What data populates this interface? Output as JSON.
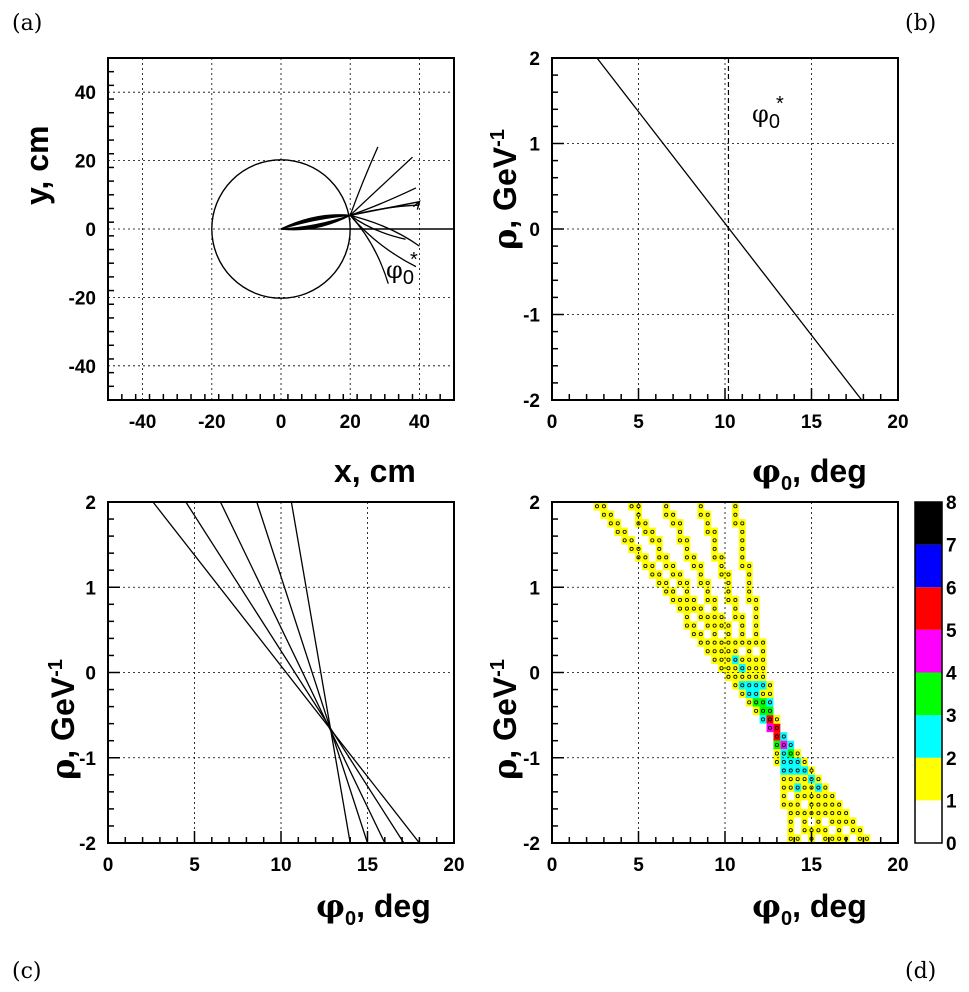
{
  "panels": {
    "a": {
      "letter": "(a)",
      "xtitle": "x, cm",
      "ytitle": "y, cm",
      "annotation_sym": "φ",
      "annotation_sub": "0",
      "annotation_sup": "*"
    },
    "b": {
      "letter": "(b)",
      "xtitle_sym": "φ",
      "xtitle_sub": "0",
      "xtitle_rest": ", deg",
      "ytitle_sym": "ρ",
      "ytitle_rest": ", GeV",
      "ytitle_sup": "-1",
      "annotation_sym": "φ",
      "annotation_sub": "0",
      "annotation_sup": "*"
    },
    "c": {
      "letter": "(c)",
      "xtitle_sym": "φ",
      "xtitle_sub": "0",
      "xtitle_rest": ", deg",
      "ytitle_sym": "ρ",
      "ytitle_rest": ", GeV",
      "ytitle_sup": "-1"
    },
    "d": {
      "letter": "(d)",
      "xtitle_sym": "φ",
      "xtitle_sub": "0",
      "xtitle_rest": ", deg",
      "ytitle_sym": "ρ",
      "ytitle_rest": ", GeV",
      "ytitle_sup": "-1"
    }
  },
  "chart_data": [
    {
      "id": "a",
      "type": "line",
      "xlim": [
        -50,
        50
      ],
      "ylim": [
        -50,
        50
      ],
      "xticks": [
        -40,
        -20,
        0,
        20,
        40
      ],
      "yticks": [
        -40,
        -20,
        0,
        20,
        40
      ],
      "grid": true,
      "circle": {
        "cx": 0,
        "cy": 0,
        "r": 20
      },
      "track_start": [
        0,
        0
      ],
      "crossing_point": [
        20,
        4
      ],
      "track_endpoints": [
        [
          28,
          24
        ],
        [
          38,
          21
        ],
        [
          39,
          12
        ],
        [
          40,
          7
        ],
        [
          36,
          -3
        ],
        [
          40,
          -5
        ],
        [
          39,
          -11
        ],
        [
          31,
          -16
        ]
      ],
      "arrow": {
        "from": [
          20,
          4
        ],
        "to": [
          40,
          8
        ]
      },
      "reference_line": {
        "from": [
          0,
          0
        ],
        "to": [
          50,
          0
        ]
      }
    },
    {
      "id": "b",
      "type": "line",
      "xlim": [
        0,
        20
      ],
      "ylim": [
        -2,
        2
      ],
      "xticks": [
        0,
        5,
        10,
        15,
        20
      ],
      "yticks": [
        -2,
        -1,
        0,
        1,
        2
      ],
      "grid": true,
      "series": [
        {
          "x": [
            2.6,
            17.9
          ],
          "y": [
            2,
            -2
          ]
        }
      ],
      "marker_line_x": 10.2
    },
    {
      "id": "c",
      "type": "line",
      "xlim": [
        0,
        20
      ],
      "ylim": [
        -2,
        2
      ],
      "xticks": [
        0,
        5,
        10,
        15,
        20
      ],
      "yticks": [
        -2,
        -1,
        0,
        1,
        2
      ],
      "grid": true,
      "series": [
        {
          "x": [
            2.6,
            18.0
          ],
          "y": [
            2,
            -2
          ]
        },
        {
          "x": [
            4.5,
            17.1
          ],
          "y": [
            2,
            -2
          ]
        },
        {
          "x": [
            6.5,
            16.0
          ],
          "y": [
            2,
            -2
          ]
        },
        {
          "x": [
            8.6,
            15.0
          ],
          "y": [
            2,
            -2
          ]
        },
        {
          "x": [
            10.6,
            14.0
          ],
          "y": [
            2,
            -2
          ]
        }
      ]
    },
    {
      "id": "d",
      "type": "heatmap",
      "xlim": [
        0,
        20
      ],
      "ylim": [
        -2,
        2
      ],
      "xticks": [
        0,
        5,
        10,
        15,
        20
      ],
      "yticks": [
        -2,
        -1,
        0,
        1,
        2
      ],
      "grid": true,
      "bin_size": {
        "x": 0.4,
        "y": 0.1
      },
      "source_lines": [
        {
          "x": [
            2.6,
            18.0
          ],
          "y": [
            2,
            -2
          ]
        },
        {
          "x": [
            4.5,
            17.1
          ],
          "y": [
            2,
            -2
          ]
        },
        {
          "x": [
            6.5,
            16.0
          ],
          "y": [
            2,
            -2
          ]
        },
        {
          "x": [
            8.6,
            15.0
          ],
          "y": [
            2,
            -2
          ]
        },
        {
          "x": [
            10.6,
            14.0
          ],
          "y": [
            2,
            -2
          ]
        }
      ],
      "colorbar": {
        "ticks": [
          "0",
          "1",
          "2",
          "3",
          "4",
          "5",
          "6",
          "7",
          "8"
        ],
        "colors": [
          "#ffffff",
          "#ffff00",
          "#00ffff",
          "#00ff00",
          "#ff00ff",
          "#ff0000",
          "#0000ff",
          "#000000"
        ]
      }
    }
  ]
}
